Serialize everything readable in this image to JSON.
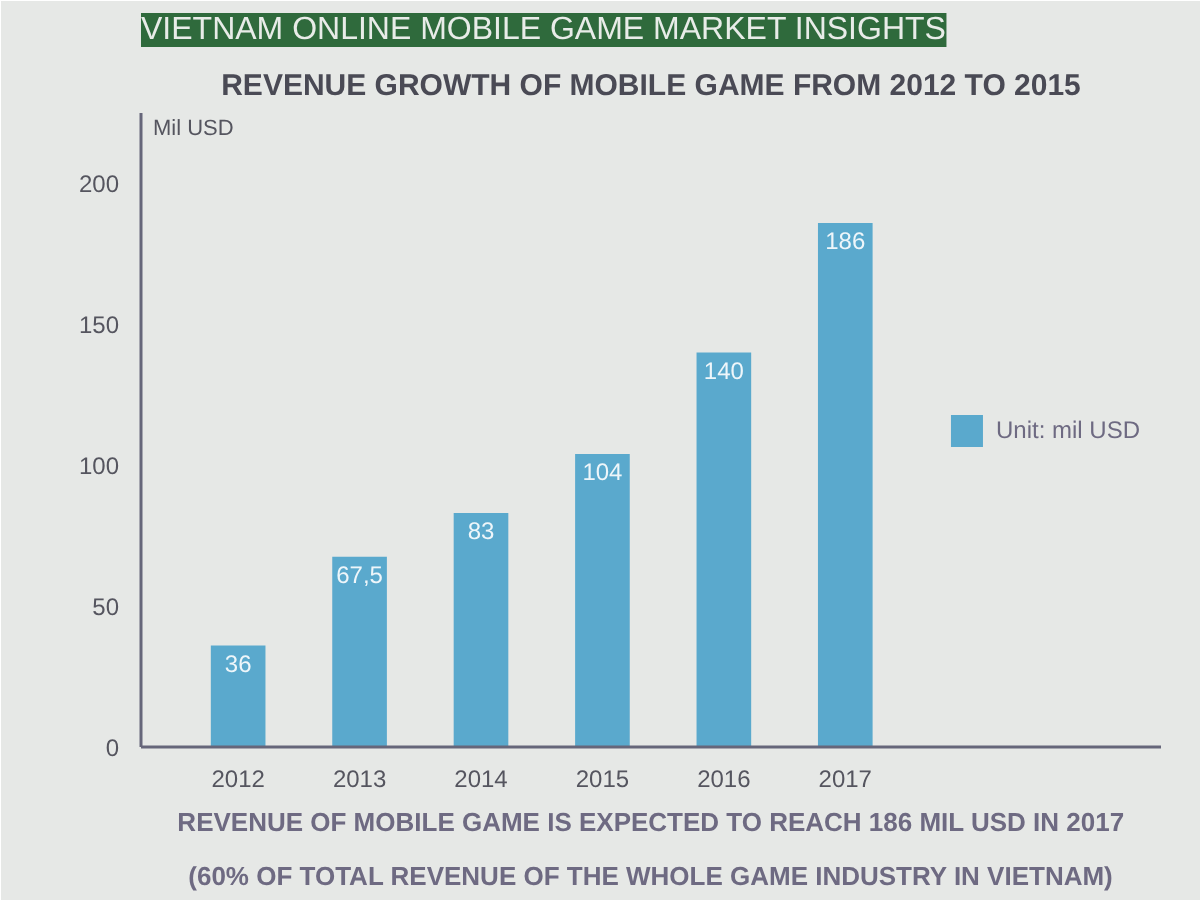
{
  "chart_data": {
    "type": "bar",
    "title": "VIETNAM ONLINE MOBILE GAME MARKET INSIGHTS",
    "subtitle": "REVENUE GROWTH OF MOBILE GAME FROM 2012 TO 2015",
    "ylabel": "Mil USD",
    "categories": [
      "2012",
      "2013",
      "2014",
      "2015",
      "2016",
      "2017"
    ],
    "series": [
      {
        "name": "Unit: mil USD",
        "color": "#5aa9cd",
        "values": [
          36,
          67.5,
          83,
          104,
          140,
          186
        ],
        "value_labels": [
          "36",
          "67,5",
          "83",
          "104",
          "140",
          "186"
        ]
      }
    ],
    "ylim": [
      0,
      225
    ],
    "yticks": [
      0,
      50,
      100,
      150,
      200
    ],
    "grid": false,
    "legend": "right",
    "annotations": [
      "REVENUE OF MOBILE GAME IS EXPECTED TO REACH 186 MIL USD IN 2017",
      "(60% OF TOTAL REVENUE OF THE WHOLE GAME INDUSTRY IN VIETNAM)"
    ]
  }
}
